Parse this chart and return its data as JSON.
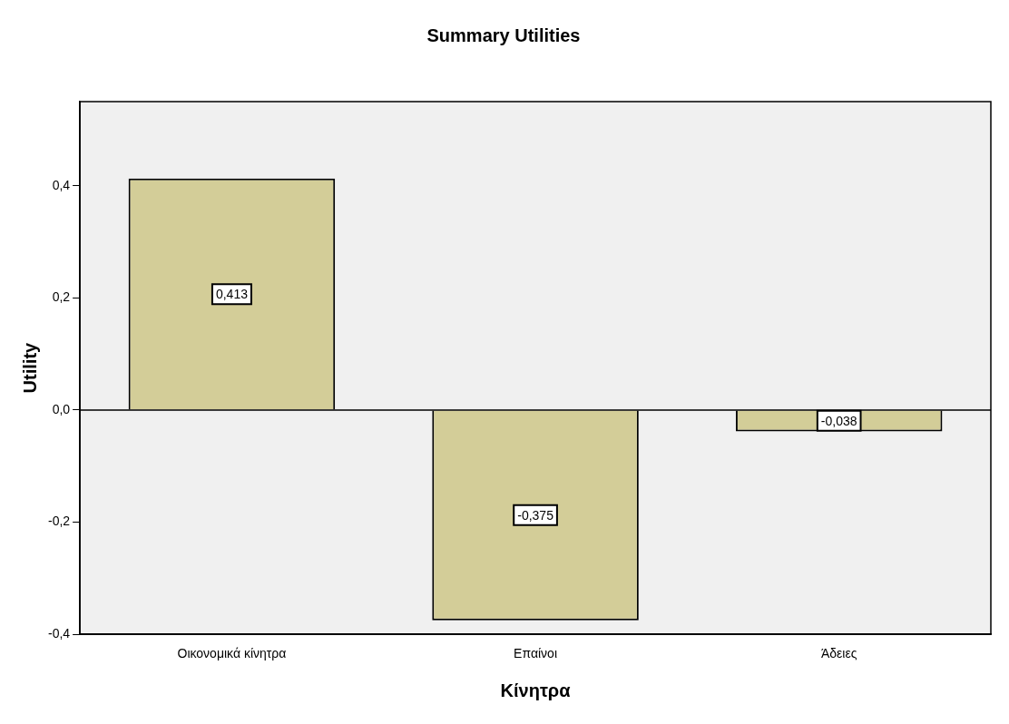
{
  "chart_data": {
    "type": "bar",
    "title": "Summary Utilities",
    "xlabel": "Κίνητρα",
    "ylabel": "Utility",
    "categories": [
      "Οικονομικά κίνητρα",
      "Επαίνοι",
      "Άδειες"
    ],
    "values": [
      0.413,
      -0.375,
      -0.038
    ],
    "value_labels": [
      "0,413",
      "-0,375",
      "-0,038"
    ],
    "color": "#d3cd98",
    "ylim": [
      -0.4,
      0.55
    ],
    "yticks": [
      {
        "value": -0.4,
        "label": "-0,4"
      },
      {
        "value": -0.2,
        "label": "-0,2"
      },
      {
        "value": 0,
        "label": "0,0"
      },
      {
        "value": 0.2,
        "label": "0,2"
      },
      {
        "value": 0.4,
        "label": "0,4"
      }
    ],
    "ref_lines": [
      {
        "axis": "y",
        "value": 0
      }
    ],
    "grid": false,
    "legend": false
  }
}
